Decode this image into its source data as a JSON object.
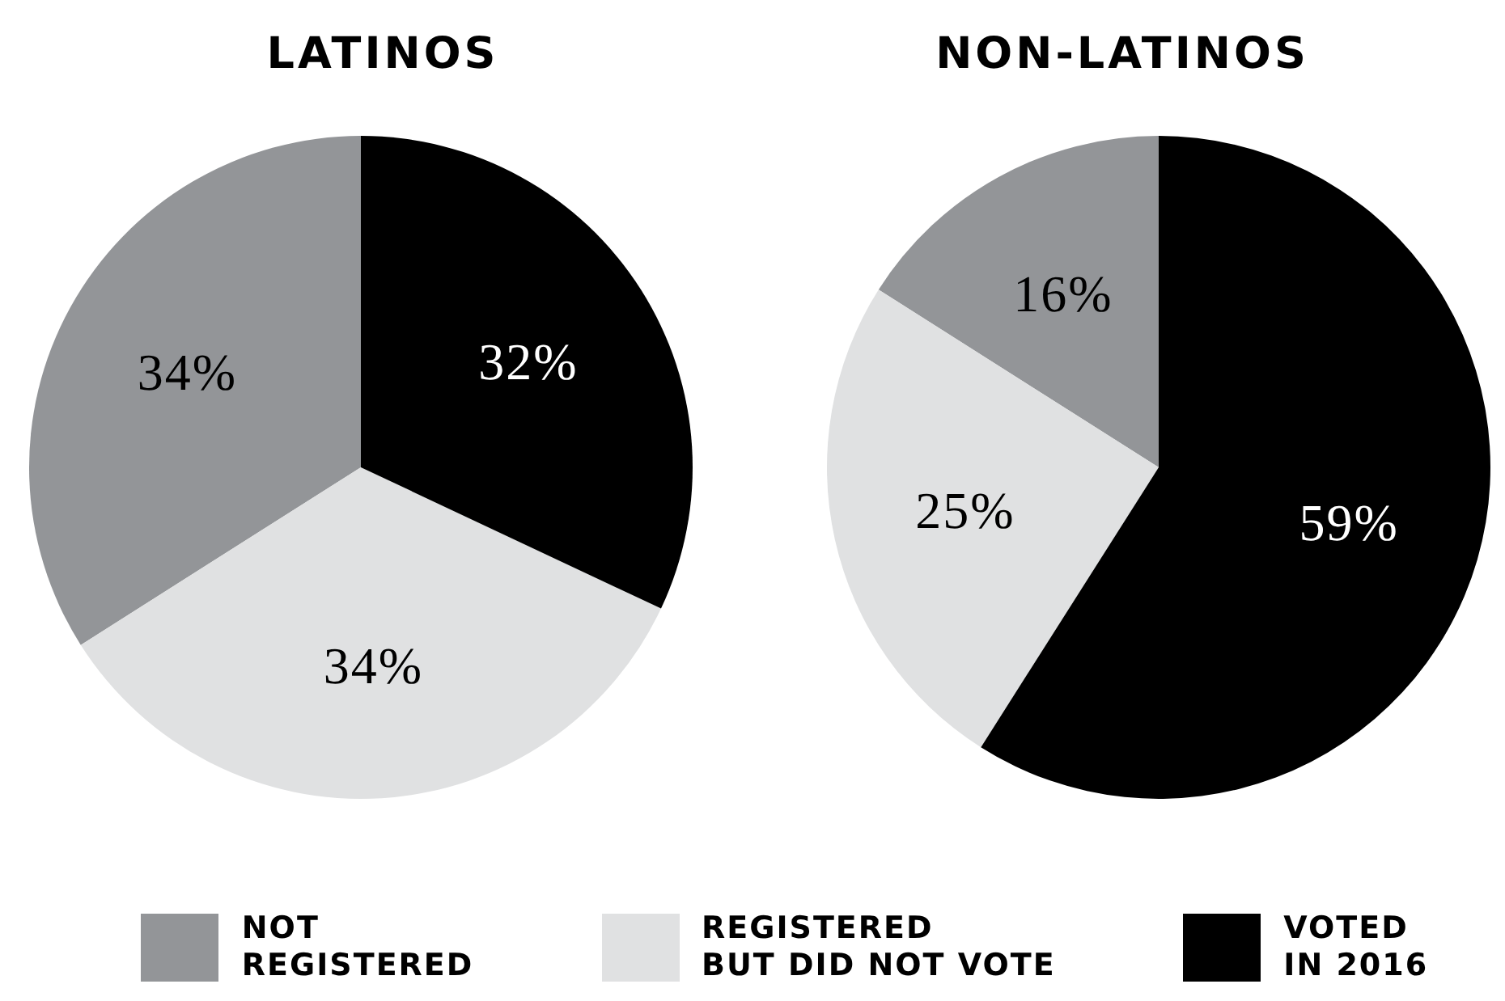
{
  "chart_data": [
    {
      "type": "pie",
      "title": "LATINOS",
      "categories": [
        "NOT REGISTERED",
        "REGISTERED BUT DID NOT VOTE",
        "VOTED IN 2016"
      ],
      "values": [
        34,
        34,
        32
      ],
      "value_labels": [
        "34%",
        "34%",
        "32%"
      ],
      "colors": [
        "#939598",
        "#e0e1e2",
        "#000000"
      ],
      "legend": "bottom"
    },
    {
      "type": "pie",
      "title": "NON-LATINOS",
      "categories": [
        null,
        null,
        null
      ],
      "values": [
        16,
        25,
        59
      ],
      "value_labels": [
        "16%",
        "25%",
        "59%"
      ],
      "colors": [
        "#939598",
        "#e0e1e2",
        "#000000"
      ]
    }
  ]
}
